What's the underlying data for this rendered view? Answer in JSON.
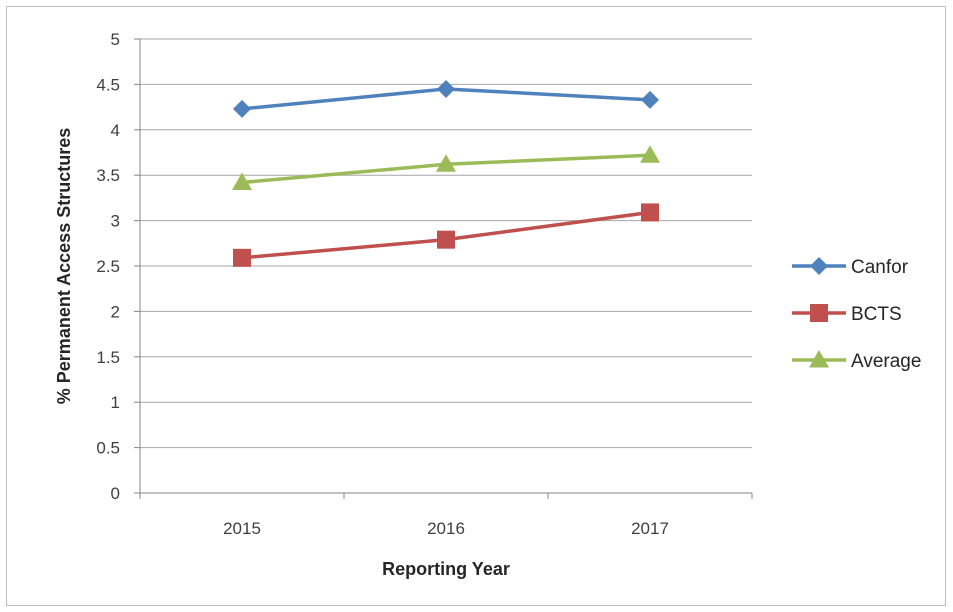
{
  "chart_data": {
    "type": "line",
    "categories": [
      "2015",
      "2016",
      "2017"
    ],
    "series": [
      {
        "name": "Canfor",
        "values": [
          4.23,
          4.45,
          4.33
        ],
        "color": "#4f81bd",
        "marker": "diamond"
      },
      {
        "name": "BCTS",
        "values": [
          2.59,
          2.79,
          3.09
        ],
        "color": "#c0504d",
        "marker": "square"
      },
      {
        "name": "Average",
        "values": [
          3.42,
          3.62,
          3.72
        ],
        "color": "#9bbb59",
        "marker": "triangle"
      }
    ],
    "xlabel": "Reporting Year",
    "ylabel": "% Permanent Access Structures",
    "ylim": [
      0,
      5
    ],
    "yticks": [
      "0",
      "0.5",
      "1",
      "1.5",
      "2",
      "2.5",
      "3",
      "3.5",
      "4",
      "4.5",
      "5"
    ],
    "grid": true,
    "legend": "right"
  }
}
